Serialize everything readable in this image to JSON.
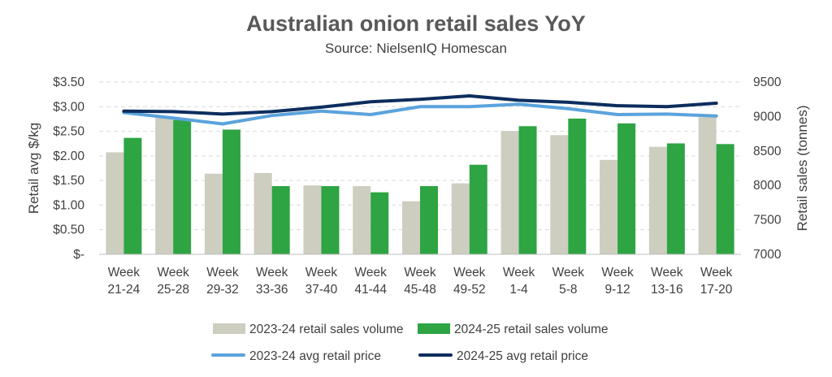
{
  "chart_data": {
    "type": "bar",
    "title": "Australian onion retail sales YoY",
    "subtitle": "Source: NielsenIQ Homescan",
    "categories": [
      [
        "Week",
        "21-24"
      ],
      [
        "Week",
        "25-28"
      ],
      [
        "Week",
        "29-32"
      ],
      [
        "Week",
        "33-36"
      ],
      [
        "Week",
        "37-40"
      ],
      [
        "Week",
        "41-44"
      ],
      [
        "Week",
        "45-48"
      ],
      [
        "Week",
        "49-52"
      ],
      [
        "Week",
        "1-4"
      ],
      [
        "Week",
        "5-8"
      ],
      [
        "Week",
        "9-12"
      ],
      [
        "Week",
        "13-16"
      ],
      [
        "Week",
        "17-20"
      ]
    ],
    "y_left": {
      "label": "Retail avg $/kg",
      "ylim": [
        0,
        3.5
      ],
      "ticks": [
        0,
        0.5,
        1.0,
        1.5,
        2.0,
        2.5,
        3.0,
        3.5
      ],
      "tick_labels": [
        "$-",
        "$0.50",
        "$1.00",
        "$1.50",
        "$2.00",
        "$2.50",
        "$3.00",
        "$3.50"
      ]
    },
    "y_right": {
      "label": "Retail sales (tonnes)",
      "ylim": [
        7000,
        9500
      ],
      "ticks": [
        7000,
        7500,
        8000,
        8500,
        9000,
        9500
      ],
      "tick_labels": [
        "7000",
        "7500",
        "8000",
        "8500",
        "9000",
        "9500"
      ]
    },
    "grid": "horizontal-dashed",
    "legend_position": "bottom",
    "series": [
      {
        "name": "2023-24 retail sales volume",
        "kind": "bar",
        "axis": "right",
        "color": "#cdcdc0",
        "values": [
          8480,
          9000,
          8170,
          8180,
          8000,
          7990,
          7770,
          8030,
          8790,
          8730,
          8370,
          8560,
          8990
        ]
      },
      {
        "name": "2024-25 retail sales volume",
        "kind": "bar",
        "axis": "right",
        "color": "#2ea443",
        "values": [
          8690,
          8950,
          8810,
          7990,
          7990,
          7900,
          7990,
          8300,
          8860,
          8970,
          8900,
          8610,
          8600
        ]
      },
      {
        "name": "2023-24 avg retail price",
        "kind": "line",
        "axis": "left",
        "color": "#5ba3dc",
        "values": [
          2.88,
          2.77,
          2.65,
          2.82,
          2.91,
          2.84,
          3.0,
          3.0,
          3.05,
          2.96,
          2.84,
          2.85,
          2.81
        ]
      },
      {
        "name": "2024-25 avg retail price",
        "kind": "line",
        "axis": "left",
        "color": "#0d2d5e",
        "values": [
          2.91,
          2.9,
          2.85,
          2.9,
          2.99,
          3.1,
          3.15,
          3.22,
          3.13,
          3.09,
          3.02,
          3.0,
          3.07
        ]
      }
    ]
  }
}
